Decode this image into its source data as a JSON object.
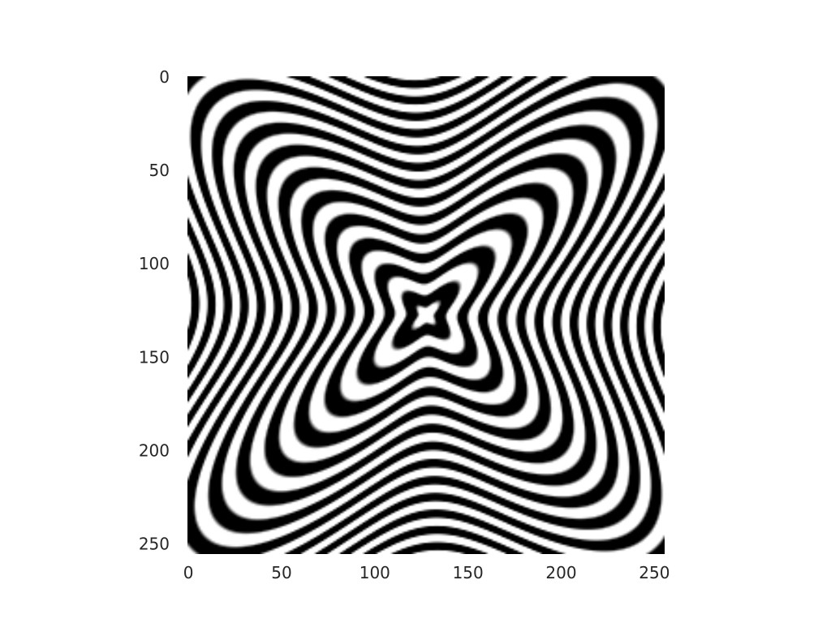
{
  "chart_data": {
    "type": "heatmap",
    "title": "",
    "xlabel": "",
    "ylabel": "",
    "colormap": "gray",
    "background": "#ffffff",
    "tick_color": "#262626",
    "grid": false,
    "image_shape": [
      256,
      256
    ],
    "xlim": [
      0,
      255
    ],
    "ylim": [
      255,
      0
    ],
    "x_ticks": [
      0,
      50,
      100,
      150,
      200,
      250
    ],
    "y_ticks": [
      0,
      50,
      100,
      150,
      200,
      250
    ],
    "x_tick_labels": [
      "0",
      "50",
      "100",
      "150",
      "200",
      "250"
    ],
    "y_tick_labels": [
      "0",
      "50",
      "100",
      "150",
      "200",
      "250"
    ],
    "pattern": "black-and-white interference fringes, symmetric about the center (128,128)"
  }
}
